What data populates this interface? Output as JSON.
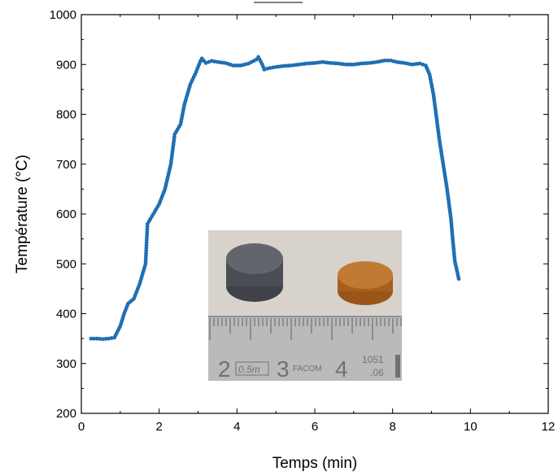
{
  "chart_data": {
    "type": "scatter",
    "xlabel": "Temps (min)",
    "ylabel": "Température (°C)",
    "xlim": [
      0,
      12
    ],
    "ylim": [
      200,
      1000
    ],
    "xticks": [
      "0",
      "2",
      "4",
      "6",
      "8",
      "10",
      "12"
    ],
    "yticks": [
      "200",
      "300",
      "400",
      "500",
      "600",
      "700",
      "800",
      "900",
      "1000"
    ],
    "grid": false,
    "marker_color": "#1f6fb2",
    "series": [
      {
        "points": [
          [
            0.25,
            350
          ],
          [
            0.4,
            350
          ],
          [
            0.55,
            349
          ],
          [
            0.7,
            350
          ],
          [
            0.85,
            352
          ],
          [
            1.0,
            375
          ],
          [
            1.1,
            400
          ],
          [
            1.2,
            420
          ],
          [
            1.35,
            430
          ],
          [
            1.5,
            460
          ],
          [
            1.65,
            500
          ],
          [
            1.7,
            580
          ],
          [
            1.85,
            600
          ],
          [
            2.0,
            620
          ],
          [
            2.15,
            650
          ],
          [
            2.3,
            700
          ],
          [
            2.4,
            760
          ],
          [
            2.55,
            780
          ],
          [
            2.65,
            820
          ],
          [
            2.8,
            860
          ],
          [
            2.95,
            885
          ],
          [
            3.05,
            905
          ],
          [
            3.1,
            912
          ],
          [
            3.2,
            903
          ],
          [
            3.35,
            907
          ],
          [
            3.5,
            905
          ],
          [
            3.7,
            903
          ],
          [
            3.9,
            898
          ],
          [
            4.1,
            898
          ],
          [
            4.3,
            902
          ],
          [
            4.5,
            910
          ],
          [
            4.55,
            915
          ],
          [
            4.65,
            900
          ],
          [
            4.7,
            890
          ],
          [
            4.85,
            893
          ],
          [
            5.0,
            895
          ],
          [
            5.2,
            897
          ],
          [
            5.4,
            898
          ],
          [
            5.6,
            900
          ],
          [
            5.8,
            902
          ],
          [
            6.0,
            903
          ],
          [
            6.2,
            905
          ],
          [
            6.4,
            903
          ],
          [
            6.6,
            902
          ],
          [
            6.8,
            900
          ],
          [
            7.0,
            900
          ],
          [
            7.2,
            902
          ],
          [
            7.4,
            903
          ],
          [
            7.6,
            905
          ],
          [
            7.8,
            908
          ],
          [
            7.95,
            908
          ],
          [
            8.1,
            905
          ],
          [
            8.3,
            903
          ],
          [
            8.5,
            900
          ],
          [
            8.7,
            902
          ],
          [
            8.85,
            898
          ],
          [
            8.95,
            880
          ],
          [
            9.05,
            840
          ],
          [
            9.1,
            810
          ],
          [
            9.2,
            750
          ],
          [
            9.3,
            700
          ],
          [
            9.4,
            650
          ],
          [
            9.5,
            590
          ],
          [
            9.55,
            545
          ],
          [
            9.6,
            505
          ],
          [
            9.7,
            470
          ]
        ]
      }
    ]
  },
  "inset_photo": {
    "ruler_labels": [
      "2",
      "0.5m",
      "3",
      "FACOM",
      "4",
      "1051",
      ".06"
    ],
    "colors": {
      "background": "#cfcac3",
      "gray_sample": "#55585f",
      "orange_sample": "#b5691f",
      "ruler": "#b9bbbb"
    }
  }
}
